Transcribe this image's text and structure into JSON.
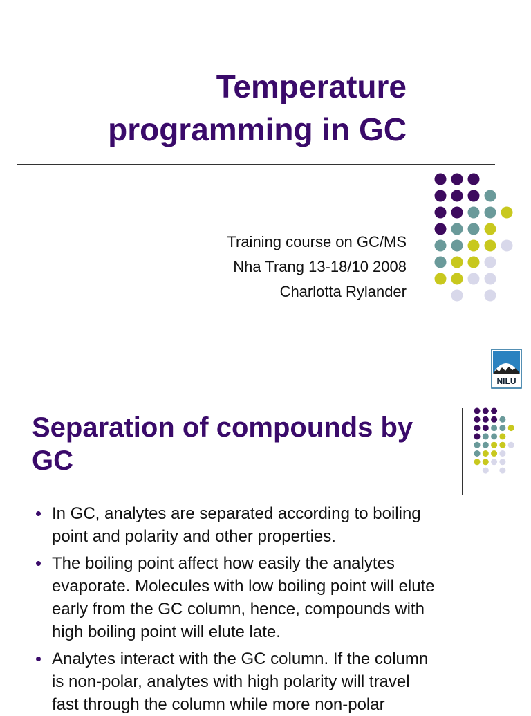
{
  "slide1": {
    "title_lines": [
      "Temperature",
      "programming in GC"
    ],
    "subtitle_lines": [
      "Training course on GC/MS",
      "Nha Trang 13-18/10 2008",
      "Charlotta Rylander"
    ],
    "logo": "NILU"
  },
  "slide2": {
    "title_lines": [
      "Separation of compounds by",
      "GC"
    ],
    "bullets": [
      {
        "lines": [
          "In GC, analytes are separated according to boiling",
          "point and polarity and other properties."
        ]
      },
      {
        "lines": [
          "The boiling point affect how easily the analytes",
          "evaporate. Molecules with low boiling point will elute",
          "early from the GC column, hence, compounds with",
          "high boiling point will elute late."
        ]
      },
      {
        "lines": [
          "Analytes interact with the GC column. If the column",
          "is non-polar, analytes with high polarity will travel",
          "fast through the column while more non-polar"
        ]
      }
    ]
  }
}
